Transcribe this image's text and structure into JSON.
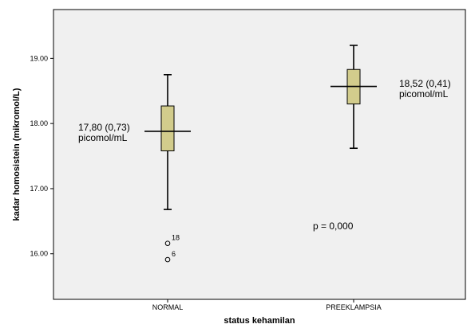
{
  "chart_data": {
    "type": "boxplot",
    "xlabel": "status kehamilan",
    "ylabel": "kadar homosistein (mikromol/L)",
    "ylim": [
      15.3,
      19.75
    ],
    "yticks": [
      "16.00",
      "17.00",
      "18.00",
      "19.00"
    ],
    "ytick_values": [
      16,
      17,
      18,
      19
    ],
    "categories": [
      "NORMAL",
      "PREEKLAMPSIA"
    ],
    "boxes": [
      {
        "category": "NORMAL",
        "whisker_low": 16.68,
        "q1": 17.58,
        "median": 17.88,
        "q3": 18.27,
        "whisker_high": 18.75,
        "outliers": [
          {
            "value": 16.16,
            "label": "18"
          },
          {
            "value": 15.91,
            "label": "6"
          }
        ]
      },
      {
        "category": "PREEKLAMPSIA",
        "whisker_low": 17.62,
        "q1": 18.3,
        "median": 18.57,
        "q3": 18.83,
        "whisker_high": 19.2,
        "outliers": []
      }
    ],
    "annotations": [
      {
        "line1": "17,80 (0,73)",
        "line2": "picomol/mL"
      },
      {
        "line1": "18,52 (0,41)",
        "line2": "picomol/mL"
      },
      {
        "line1": "p = 0,000"
      }
    ],
    "colors": {
      "background": "#ffffff",
      "plot_background": "#f0f0f0",
      "box_fill": "#d2cc8c",
      "line": "#000000"
    },
    "grid": false
  }
}
